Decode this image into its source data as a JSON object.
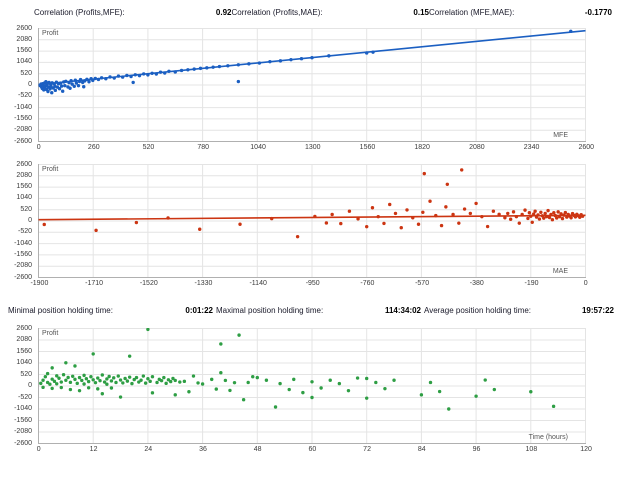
{
  "stats_top": {
    "items": [
      {
        "label": "Correlation (Profits,MFE):",
        "value": "0.92"
      },
      {
        "label": "Correlation (Profits,MAE):",
        "value": "0.15"
      },
      {
        "label": "Correlation (MFE,MAE):",
        "value": "-0.1770"
      }
    ]
  },
  "stats_middle": {
    "items": [
      {
        "label": "Minimal position holding time:",
        "value": "0:01:22"
      },
      {
        "label": "Maximal position holding time:",
        "value": "114:34:02"
      },
      {
        "label": "Average position holding time:",
        "value": "19:57:22"
      }
    ]
  },
  "chart_data": [
    {
      "type": "scatter",
      "id": "profit-vs-mfe",
      "title": "",
      "inner_label": "Profit",
      "xlabel": "MFE",
      "color": "#1b5fc2",
      "xlim": [
        0,
        2600
      ],
      "ylim": [
        -2600,
        2600
      ],
      "x_ticks": [
        0,
        260,
        520,
        780,
        1040,
        1300,
        1560,
        1820,
        2080,
        2340,
        2600
      ],
      "y_ticks": [
        2600,
        2080,
        1560,
        1040,
        520,
        0,
        -520,
        -1040,
        -1560,
        -2080,
        -2600
      ],
      "trend": [
        [
          0,
          20
        ],
        [
          2600,
          2500
        ]
      ],
      "points": [
        [
          8,
          -30
        ],
        [
          12,
          45
        ],
        [
          15,
          -95
        ],
        [
          18,
          -160
        ],
        [
          20,
          60
        ],
        [
          22,
          -40
        ],
        [
          25,
          -225
        ],
        [
          28,
          90
        ],
        [
          30,
          -120
        ],
        [
          33,
          -60
        ],
        [
          35,
          150
        ],
        [
          38,
          -205
        ],
        [
          40,
          -20
        ],
        [
          43,
          70
        ],
        [
          45,
          -300
        ],
        [
          48,
          -100
        ],
        [
          50,
          120
        ],
        [
          55,
          -180
        ],
        [
          58,
          30
        ],
        [
          60,
          -80
        ],
        [
          63,
          -355
        ],
        [
          65,
          100
        ],
        [
          70,
          -140
        ],
        [
          75,
          50
        ],
        [
          78,
          -60
        ],
        [
          80,
          -245
        ],
        [
          85,
          130
        ],
        [
          90,
          -100
        ],
        [
          95,
          60
        ],
        [
          100,
          -170
        ],
        [
          105,
          90
        ],
        [
          110,
          -50
        ],
        [
          115,
          -285
        ],
        [
          120,
          140
        ],
        [
          125,
          -30
        ],
        [
          130,
          170
        ],
        [
          140,
          -90
        ],
        [
          145,
          110
        ],
        [
          150,
          -150
        ],
        [
          155,
          200
        ],
        [
          160,
          40
        ],
        [
          170,
          -60
        ],
        [
          175,
          220
        ],
        [
          180,
          90
        ],
        [
          190,
          -30
        ],
        [
          195,
          160
        ],
        [
          200,
          250
        ],
        [
          210,
          120
        ],
        [
          215,
          -80
        ],
        [
          220,
          190
        ],
        [
          230,
          260
        ],
        [
          240,
          150
        ],
        [
          250,
          290
        ],
        [
          258,
          210
        ],
        [
          270,
          300
        ],
        [
          285,
          255
        ],
        [
          300,
          330
        ],
        [
          320,
          290
        ],
        [
          340,
          370
        ],
        [
          360,
          320
        ],
        [
          380,
          410
        ],
        [
          400,
          365
        ],
        [
          420,
          440
        ],
        [
          440,
          390
        ],
        [
          450,
          120
        ],
        [
          460,
          470
        ],
        [
          480,
          430
        ],
        [
          500,
          510
        ],
        [
          520,
          465
        ],
        [
          540,
          540
        ],
        [
          560,
          505
        ],
        [
          580,
          590
        ],
        [
          600,
          550
        ],
        [
          620,
          630
        ],
        [
          650,
          600
        ],
        [
          680,
          670
        ],
        [
          710,
          700
        ],
        [
          740,
          730
        ],
        [
          770,
          765
        ],
        [
          800,
          790
        ],
        [
          830,
          820
        ],
        [
          860,
          850
        ],
        [
          900,
          885
        ],
        [
          950,
          160
        ],
        [
          950,
          930
        ],
        [
          1000,
          975
        ],
        [
          1050,
          1010
        ],
        [
          1100,
          1075
        ],
        [
          1150,
          1110
        ],
        [
          1200,
          1165
        ],
        [
          1250,
          1210
        ],
        [
          1300,
          1255
        ],
        [
          1380,
          1340
        ],
        [
          1560,
          1475
        ],
        [
          1590,
          1510
        ],
        [
          2530,
          2470
        ]
      ]
    },
    {
      "type": "scatter",
      "id": "profit-vs-mae",
      "title": "",
      "inner_label": "Profit",
      "xlabel": "MAE",
      "color": "#cc3512",
      "xlim": [
        -1900,
        0
      ],
      "ylim": [
        -2600,
        2600
      ],
      "x_ticks": [
        -1900,
        -1710,
        -1520,
        -1330,
        -1140,
        -950,
        -760,
        -570,
        -380,
        -190,
        0
      ],
      "y_ticks": [
        2600,
        2080,
        1560,
        1040,
        520,
        0,
        -520,
        -1040,
        -1560,
        -2080,
        -2600
      ],
      "trend": [
        [
          -1900,
          60
        ],
        [
          0,
          260
        ]
      ],
      "points": [
        [
          -1880,
          -160
        ],
        [
          -1700,
          -430
        ],
        [
          -1560,
          -70
        ],
        [
          -1450,
          140
        ],
        [
          -1340,
          -380
        ],
        [
          -1200,
          -150
        ],
        [
          -1090,
          110
        ],
        [
          -1000,
          -720
        ],
        [
          -940,
          210
        ],
        [
          -900,
          -90
        ],
        [
          -560,
          2180
        ],
        [
          -430,
          2350
        ],
        [
          -480,
          1690
        ],
        [
          -880,
          300
        ],
        [
          -850,
          -120
        ],
        [
          -820,
          450
        ],
        [
          -790,
          100
        ],
        [
          -760,
          -260
        ],
        [
          -740,
          610
        ],
        [
          -720,
          200
        ],
        [
          -700,
          -110
        ],
        [
          -680,
          760
        ],
        [
          -660,
          350
        ],
        [
          -640,
          -310
        ],
        [
          -620,
          510
        ],
        [
          -600,
          150
        ],
        [
          -580,
          -150
        ],
        [
          -565,
          400
        ],
        [
          -540,
          910
        ],
        [
          -520,
          250
        ],
        [
          -500,
          -210
        ],
        [
          -485,
          650
        ],
        [
          -460,
          300
        ],
        [
          -440,
          -100
        ],
        [
          -420,
          550
        ],
        [
          -400,
          350
        ],
        [
          -380,
          810
        ],
        [
          -360,
          200
        ],
        [
          -340,
          -255
        ],
        [
          -320,
          450
        ],
        [
          -300,
          310
        ],
        [
          -280,
          150
        ],
        [
          -270,
          350
        ],
        [
          -260,
          80
        ],
        [
          -250,
          420
        ],
        [
          -240,
          200
        ],
        [
          -230,
          -100
        ],
        [
          -220,
          300
        ],
        [
          -210,
          500
        ],
        [
          -200,
          120
        ],
        [
          -195,
          380
        ],
        [
          -190,
          220
        ],
        [
          -185,
          -60
        ],
        [
          -180,
          320
        ],
        [
          -175,
          450
        ],
        [
          -170,
          180
        ],
        [
          -165,
          280
        ],
        [
          -160,
          90
        ],
        [
          -155,
          400
        ],
        [
          -150,
          240
        ],
        [
          -145,
          130
        ],
        [
          -140,
          350
        ],
        [
          -135,
          200
        ],
        [
          -130,
          480
        ],
        [
          -125,
          160
        ],
        [
          -120,
          300
        ],
        [
          -115,
          60
        ],
        [
          -110,
          380
        ],
        [
          -105,
          250
        ],
        [
          -100,
          140
        ],
        [
          -95,
          420
        ],
        [
          -90,
          200
        ],
        [
          -85,
          330
        ],
        [
          -80,
          110
        ],
        [
          -75,
          270
        ],
        [
          -70,
          390
        ],
        [
          -65,
          180
        ],
        [
          -60,
          300
        ],
        [
          -55,
          230
        ],
        [
          -50,
          150
        ],
        [
          -45,
          340
        ],
        [
          -40,
          260
        ],
        [
          -35,
          190
        ],
        [
          -30,
          310
        ],
        [
          -25,
          240
        ],
        [
          -20,
          170
        ],
        [
          -15,
          290
        ],
        [
          -10,
          220
        ]
      ]
    },
    {
      "type": "scatter",
      "id": "profit-vs-holding-time",
      "title": "",
      "inner_label": "Profit",
      "xlabel": "Time (hours)",
      "color": "#2e9e44",
      "xlim": [
        0,
        120
      ],
      "ylim": [
        -2600,
        2600
      ],
      "x_ticks": [
        0,
        12,
        24,
        36,
        48,
        60,
        72,
        84,
        96,
        108,
        120
      ],
      "y_ticks": [
        2600,
        2080,
        1560,
        1040,
        520,
        0,
        -520,
        -1040,
        -1560,
        -2080,
        -2600
      ],
      "trend": null,
      "points": [
        [
          0.5,
          120
        ],
        [
          1,
          260
        ],
        [
          1,
          -60
        ],
        [
          1.5,
          420
        ],
        [
          2,
          160
        ],
        [
          2,
          560
        ],
        [
          2.5,
          80
        ],
        [
          3,
          310
        ],
        [
          3,
          -110
        ],
        [
          3,
          820
        ],
        [
          3.5,
          210
        ],
        [
          4,
          460
        ],
        [
          4,
          100
        ],
        [
          4.5,
          350
        ],
        [
          5,
          180
        ],
        [
          5,
          -70
        ],
        [
          5.5,
          510
        ],
        [
          6,
          255
        ],
        [
          6,
          1050
        ],
        [
          6.5,
          385
        ],
        [
          7,
          165
        ],
        [
          7,
          -160
        ],
        [
          7.5,
          440
        ],
        [
          8,
          300
        ],
        [
          8,
          905
        ],
        [
          8.5,
          120
        ],
        [
          9,
          380
        ],
        [
          9,
          -210
        ],
        [
          9.5,
          250
        ],
        [
          10,
          480
        ],
        [
          10,
          90
        ],
        [
          10.5,
          330
        ],
        [
          11,
          200
        ],
        [
          11,
          -80
        ],
        [
          11.5,
          420
        ],
        [
          12,
          280
        ],
        [
          12,
          1450
        ],
        [
          12.5,
          150
        ],
        [
          13,
          360
        ],
        [
          13,
          -130
        ],
        [
          13.5,
          240
        ],
        [
          14,
          500
        ],
        [
          14,
          -350
        ],
        [
          14.5,
          180
        ],
        [
          15,
          320
        ],
        [
          15,
          80
        ],
        [
          15.5,
          430
        ],
        [
          16,
          230
        ],
        [
          16,
          -90
        ],
        [
          16.5,
          370
        ],
        [
          17,
          160
        ],
        [
          17.5,
          450
        ],
        [
          18,
          270
        ],
        [
          18,
          -500
        ],
        [
          18.5,
          140
        ],
        [
          19,
          340
        ],
        [
          19.5,
          220
        ],
        [
          20,
          400
        ],
        [
          20,
          1350
        ],
        [
          20.5,
          110
        ],
        [
          21,
          290
        ],
        [
          21.5,
          380
        ],
        [
          22,
          180
        ],
        [
          22.5,
          260
        ],
        [
          23,
          450
        ],
        [
          23.5,
          130
        ],
        [
          24,
          2560
        ],
        [
          24,
          330
        ],
        [
          24.5,
          210
        ],
        [
          25,
          420
        ],
        [
          25,
          -310
        ],
        [
          26,
          160
        ],
        [
          26.5,
          300
        ],
        [
          27,
          240
        ],
        [
          27.5,
          380
        ],
        [
          28,
          120
        ],
        [
          28.5,
          280
        ],
        [
          29,
          200
        ],
        [
          29.5,
          340
        ],
        [
          30,
          -400
        ],
        [
          30,
          250
        ],
        [
          31,
          180
        ],
        [
          32,
          210
        ],
        [
          33,
          -260
        ],
        [
          34,
          450
        ],
        [
          35,
          140
        ],
        [
          36,
          90
        ],
        [
          38,
          300
        ],
        [
          39,
          -140
        ],
        [
          40,
          1900
        ],
        [
          40,
          600
        ],
        [
          41,
          250
        ],
        [
          42,
          -200
        ],
        [
          43,
          150
        ],
        [
          44,
          2300
        ],
        [
          45,
          -620
        ],
        [
          46,
          160
        ],
        [
          47,
          420
        ],
        [
          48,
          380
        ],
        [
          50,
          260
        ],
        [
          52,
          -950
        ],
        [
          53,
          110
        ],
        [
          55,
          -160
        ],
        [
          56,
          300
        ],
        [
          58,
          -300
        ],
        [
          60,
          190
        ],
        [
          60,
          -520
        ],
        [
          62,
          -90
        ],
        [
          64,
          260
        ],
        [
          66,
          110
        ],
        [
          68,
          -210
        ],
        [
          70,
          360
        ],
        [
          72,
          -550
        ],
        [
          72,
          340
        ],
        [
          74,
          160
        ],
        [
          76,
          -120
        ],
        [
          78,
          260
        ],
        [
          84,
          -400
        ],
        [
          86,
          160
        ],
        [
          88,
          -250
        ],
        [
          90,
          -1040
        ],
        [
          96,
          -460
        ],
        [
          98,
          270
        ],
        [
          100,
          -160
        ],
        [
          108,
          -260
        ],
        [
          113,
          -920
        ]
      ]
    }
  ]
}
